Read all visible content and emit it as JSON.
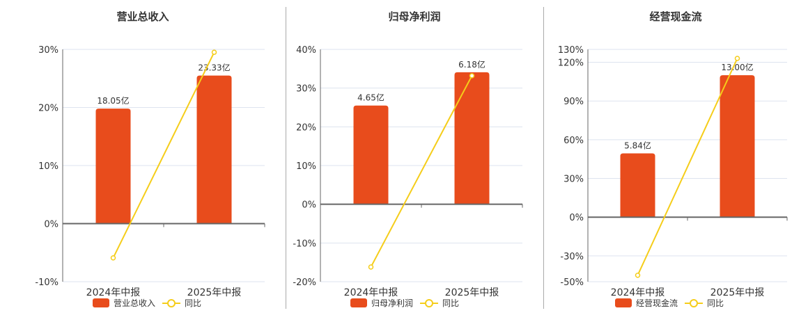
{
  "colors": {
    "bar": "#e84c1c",
    "line": "#f5cd1a",
    "grid": "#dde3ef",
    "axis": "#666666"
  },
  "chart_data": [
    {
      "type": "bar+line",
      "title": "营业总收入",
      "categories": [
        "2024年中报",
        "2025年中报"
      ],
      "series": [
        {
          "name": "营业总收入",
          "type": "bar",
          "values": [
            19.8,
            25.5
          ],
          "labels": [
            "18.05亿",
            "23.33亿"
          ]
        },
        {
          "name": "同比",
          "type": "line",
          "values": [
            -5.9,
            29.5
          ]
        }
      ],
      "yticks": [
        30,
        20,
        10,
        0,
        -10
      ],
      "ylim": [
        -10,
        30
      ],
      "ytick_format": "%",
      "grid": true,
      "legend": [
        "营业总收入",
        "同比"
      ]
    },
    {
      "type": "bar+line",
      "title": "归母净利润",
      "categories": [
        "2024年中报",
        "2025年中报"
      ],
      "series": [
        {
          "name": "归母净利润",
          "type": "bar",
          "values": [
            25.5,
            34.1
          ],
          "labels": [
            "4.65亿",
            "6.18亿"
          ]
        },
        {
          "name": "同比",
          "type": "line",
          "values": [
            -16.2,
            33.2
          ]
        }
      ],
      "yticks": [
        40,
        30,
        20,
        10,
        0,
        -10,
        -20
      ],
      "ylim": [
        -20,
        40
      ],
      "ytick_format": "%",
      "grid": true,
      "legend": [
        "归母净利润",
        "同比"
      ]
    },
    {
      "type": "bar+line",
      "title": "经营现金流",
      "categories": [
        "2024年中报",
        "2025年中报"
      ],
      "series": [
        {
          "name": "经营现金流",
          "type": "bar",
          "values": [
            49.4,
            110.0
          ],
          "labels": [
            "5.84亿",
            "13.00亿"
          ]
        },
        {
          "name": "同比",
          "type": "line",
          "values": [
            -45.0,
            123.0
          ]
        }
      ],
      "yticks": [
        130,
        120,
        90,
        60,
        30,
        0,
        -30,
        -50
      ],
      "ylim": [
        -50,
        130
      ],
      "ytick_format": "%",
      "grid": true,
      "legend": [
        "经营现金流",
        "同比"
      ]
    }
  ]
}
